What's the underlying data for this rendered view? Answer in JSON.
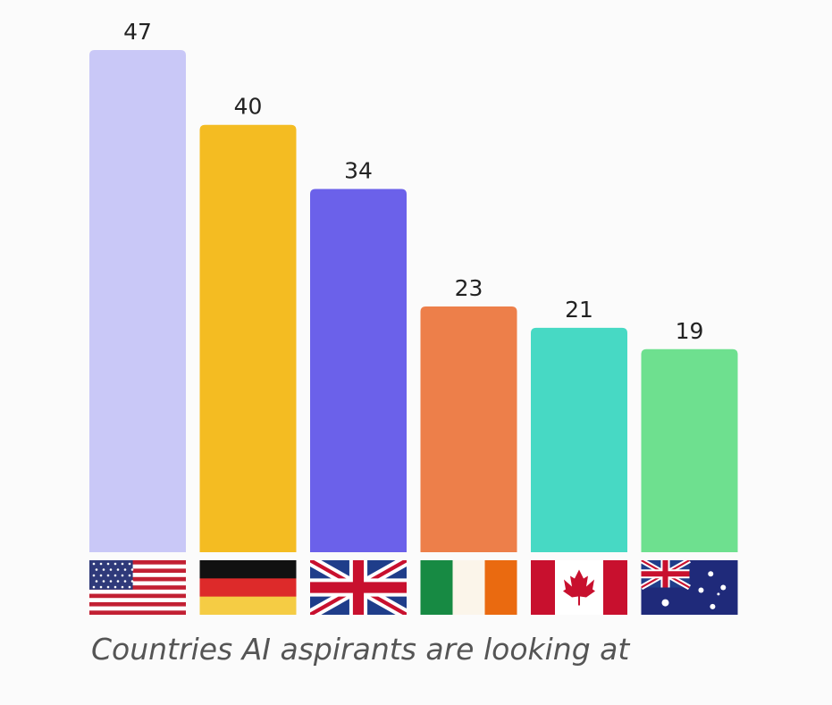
{
  "chart_data": {
    "type": "bar",
    "title": "Countries AI aspirants are looking at",
    "categories": [
      null,
      null,
      null,
      null,
      null,
      null
    ],
    "values": [
      47,
      40,
      34,
      23,
      21,
      19
    ],
    "colors": [
      "#c9c8f7",
      "#f4bc22",
      "#6b61ea",
      "#ed7f4a",
      "#47d9c4",
      "#6ee08f"
    ]
  }
}
